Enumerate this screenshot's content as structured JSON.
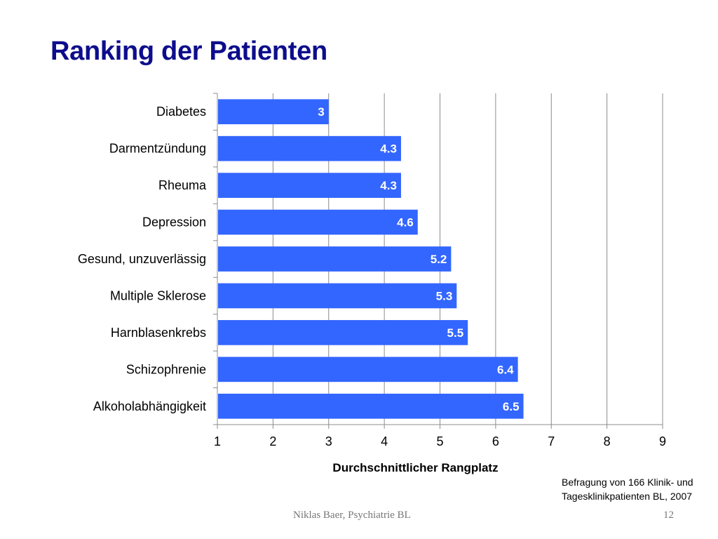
{
  "slide": {
    "title": "Ranking der Patienten",
    "note_line1": "Befragung von 166 Klinik- und",
    "note_line2": "Tagesklinikpatienten BL, 2007",
    "footer": "Niklas Baer, Psychiatrie BL",
    "page_number": "12"
  },
  "chart_data": {
    "type": "bar",
    "orientation": "horizontal",
    "categories": [
      "Diabetes",
      "Darmentzündung",
      "Rheuma",
      "Depression",
      "Gesund, unzuverlässig",
      "Multiple Sklerose",
      "Harnblasenkrebs",
      "Schizophrenie",
      "Alkoholabhängigkeit"
    ],
    "values": [
      3,
      4.3,
      4.3,
      4.6,
      5.2,
      5.3,
      5.5,
      6.4,
      6.5
    ],
    "value_labels": [
      "3",
      "4.3",
      "4.3",
      "4.6",
      "5.2",
      "5.3",
      "5.5",
      "6.4",
      "6.5"
    ],
    "xlabel": "Durchschnittlicher Rangplatz",
    "ylabel": "",
    "xlim": [
      1,
      9
    ],
    "xticks": [
      "1",
      "2",
      "3",
      "4",
      "5",
      "6",
      "7",
      "8",
      "9"
    ],
    "grid": true,
    "bar_color": "#3366ff",
    "legend": "none"
  }
}
